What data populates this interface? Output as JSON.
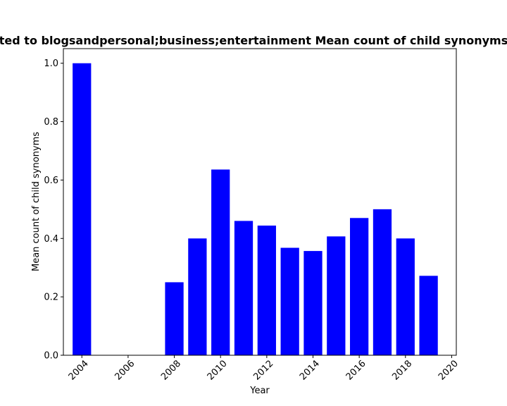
{
  "chart_data": {
    "type": "bar",
    "title": "ted to blogsandpersonal;business;entertainment Mean count of child synonyms",
    "xlabel": "Year",
    "ylabel": "Mean count of child synonyms",
    "x": [
      2004,
      2008,
      2009,
      2010,
      2011,
      2012,
      2013,
      2014,
      2015,
      2016,
      2017,
      2018,
      2019
    ],
    "values": [
      1.0,
      0.25,
      0.4,
      0.636,
      0.46,
      0.444,
      0.368,
      0.357,
      0.407,
      0.47,
      0.5,
      0.4,
      0.272
    ],
    "xlim": [
      2003.2,
      2020.2
    ],
    "ylim": [
      0,
      1.05
    ],
    "xticks": [
      "2004",
      "2006",
      "2008",
      "2010",
      "2012",
      "2014",
      "2016",
      "2018",
      "2020"
    ],
    "yticks": [
      "0.0",
      "0.2",
      "0.4",
      "0.6",
      "0.8",
      "1.0"
    ],
    "bar_color": "#0000ff",
    "grid": false,
    "legend": "none"
  }
}
